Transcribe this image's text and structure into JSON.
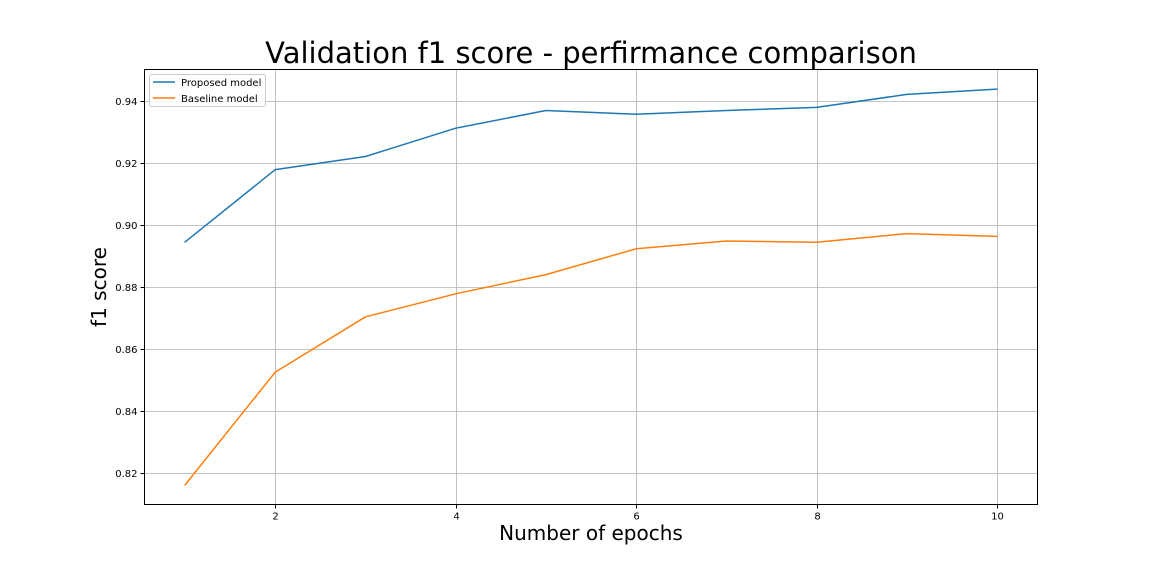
{
  "chart_data": {
    "type": "line",
    "title": "Validation f1 score - perfirmance comparison",
    "xlabel": "Number of epochs",
    "ylabel": "f1 score",
    "x": [
      1,
      2,
      3,
      4,
      5,
      6,
      7,
      8,
      9,
      10
    ],
    "xlim": [
      0.55,
      10.45
    ],
    "ylim": [
      0.81,
      0.95
    ],
    "xticks": [
      2,
      4,
      6,
      8,
      10
    ],
    "yticks": [
      0.82,
      0.84,
      0.86,
      0.88,
      0.9,
      0.92,
      0.94
    ],
    "xtick_labels": [
      "2",
      "4",
      "6",
      "8",
      "10"
    ],
    "ytick_labels": [
      "0.82",
      "0.84",
      "0.86",
      "0.88",
      "0.90",
      "0.92",
      "0.94"
    ],
    "grid": true,
    "legend_position": "top-left",
    "series": [
      {
        "name": "Proposed model",
        "color": "#1f77b4",
        "values": [
          0.8945,
          0.9178,
          0.922,
          0.9311,
          0.9368,
          0.9356,
          0.9368,
          0.9378,
          0.942,
          0.9437
        ]
      },
      {
        "name": "Baseline model",
        "color": "#ff7f0e",
        "values": [
          0.8163,
          0.8526,
          0.8704,
          0.8778,
          0.884,
          0.8923,
          0.8948,
          0.8944,
          0.8972,
          0.8963
        ]
      }
    ]
  }
}
